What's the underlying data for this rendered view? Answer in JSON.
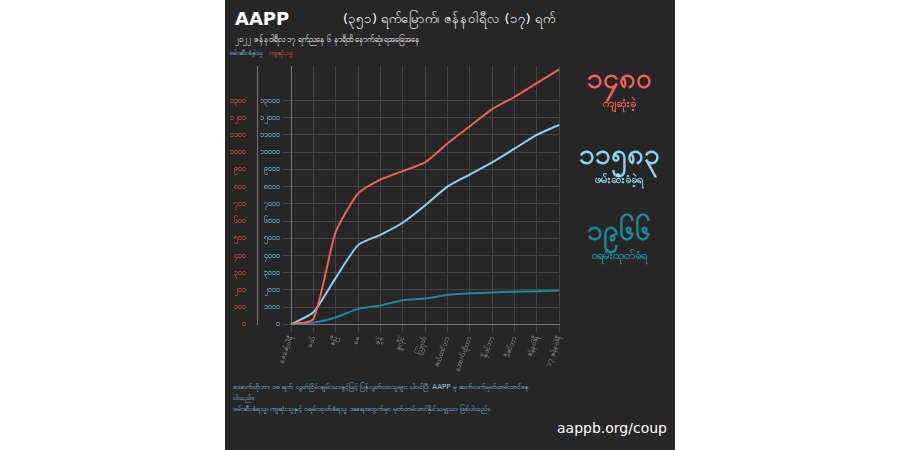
{
  "header": {
    "logo": "AAPP",
    "title": "(၃၅၁) ရက်မြောက်၊ ဇန်နဝါရီလ (၁၇) ရက်",
    "subtitle": "၂၀၂၂ ဇန်နဝါရီလ ၁၇ ရက်ညနေ ၆ နာရီထိ နောက်ဆုံးရအခြေအနေ"
  },
  "chart_data": {
    "type": "line",
    "ylabel": "ဖမ်းဆီးခံခဲ့သူ",
    "y2label": "ကျဆုံးသူ",
    "categories": [
      "ဖေဖော်ဝါရီ",
      "မတ်",
      "ဧပြီ",
      "မေ",
      "ဇွန်",
      "ဇူလိုင်",
      "သြဂုတ်",
      "စက်တင်ဘာ",
      "အောက်တိုဘာ",
      "နိုဝင်ဘာ",
      "ဒီဇင်ဘာ",
      "ဇန်နဝါရီ",
      "၁၇ ဇန်နဝါရီ"
    ],
    "series": [
      {
        "name": "ကျဆုံးသူ",
        "color": "#f0615a",
        "axis": "y2",
        "marker": "none",
        "line_style": "solid",
        "values": [
          0,
          30,
          536,
          759,
          840,
          890,
          940,
          1050,
          1150,
          1250,
          1320,
          1400,
          1480
        ]
      },
      {
        "name": "ဖမ်းဆီးခံခဲ့သူ",
        "color": "#8fd3ea",
        "marker": "none",
        "line_style": "solid",
        "values": [
          0,
          700,
          2700,
          4600,
          5200,
          5900,
          6900,
          8000,
          8700,
          9400,
          10200,
          11000,
          11583
        ]
      },
      {
        "name": "ဝရမ်းထုတ်ခံရ",
        "color": "#1e8a99",
        "marker": "none",
        "line_style": "solid",
        "values": [
          0,
          100,
          400,
          900,
          1100,
          1400,
          1500,
          1700,
          1800,
          1850,
          1900,
          1920,
          1966
        ]
      }
    ],
    "ylim": [
      0,
      15000
    ],
    "yticks": [
      {
        "value": 0,
        "label": "၀"
      },
      {
        "value": 1000,
        "label": "၁၀၀၀"
      },
      {
        "value": 2000,
        "label": "၂၀၀၀"
      },
      {
        "value": 3000,
        "label": "၃၀၀၀"
      },
      {
        "value": 4000,
        "label": "၄၀၀၀"
      },
      {
        "value": 5000,
        "label": "၅၀၀၀"
      },
      {
        "value": 6000,
        "label": "၆၀၀၀"
      },
      {
        "value": 7000,
        "label": "၇၀၀၀"
      },
      {
        "value": 8000,
        "label": "၈၀၀၀"
      },
      {
        "value": 9000,
        "label": "၉၀၀၀"
      },
      {
        "value": 10000,
        "label": "၁၀၀၀၀"
      },
      {
        "value": 11000,
        "label": "၁၁၀၀၀"
      },
      {
        "value": 12000,
        "label": "၁၂၀၀၀"
      },
      {
        "value": 13000,
        "label": "၁၃၀၀၀"
      }
    ],
    "y2lim": [
      0,
      1500
    ],
    "y2ticks": [
      {
        "value": 0,
        "label": "၀"
      },
      {
        "value": 100,
        "label": "၁၀၀"
      },
      {
        "value": 200,
        "label": "၂၀၀"
      },
      {
        "value": 300,
        "label": "၃၀၀"
      },
      {
        "value": 400,
        "label": "၄၀၀"
      },
      {
        "value": 500,
        "label": "၅၀၀"
      },
      {
        "value": 600,
        "label": "၆၀၀"
      },
      {
        "value": 700,
        "label": "၇၀၀"
      },
      {
        "value": 800,
        "label": "၈၀၀"
      },
      {
        "value": 900,
        "label": "၉၀၀"
      },
      {
        "value": 1000,
        "label": "၁၀၀၀"
      },
      {
        "value": 1100,
        "label": "၁၁၀၀"
      },
      {
        "value": 1200,
        "label": "၁၂၀၀"
      },
      {
        "value": 1300,
        "label": "၁၃၀၀"
      }
    ],
    "grid": true
  },
  "totals": [
    {
      "value": 1480,
      "label": "၁၄၈၀",
      "text": "ကျဆုံးခဲ့",
      "color": "#f0615a"
    },
    {
      "value": 11583,
      "label": "၁၁၅၈၃",
      "text": "ဖမ်းဆီးခံခဲ့ရ",
      "color": "#8fd3ea"
    },
    {
      "value": 1966,
      "label": "၁၉၆၆",
      "text": "ဝရမ်းထုတ်ခံရ",
      "color": "#1e8a99"
    }
  ],
  "footer": {
    "notes": [
      "အောက်တိုဘာ ၁၈ ရက် လွတ်ငြိမ်းချမ်းသာခွင့်ဖြင့် ပြန်လွတ်လာသူများ ပါဝင်ပြီး AAPP မှ ဆက်လက်မှတ်တမ်းတင်နေပါသည်။",
      "ဖမ်းဆီးခံရသူ၊ ကျဆုံးသူနှင့် ဝရမ်းထုတ်ခံရသူ အရေအတွက်မှာ မှတ်တမ်းတင်နိုင်သမျှသာ ဖြစ်ပါသည်။"
    ],
    "url": "aappb.org/coup"
  }
}
